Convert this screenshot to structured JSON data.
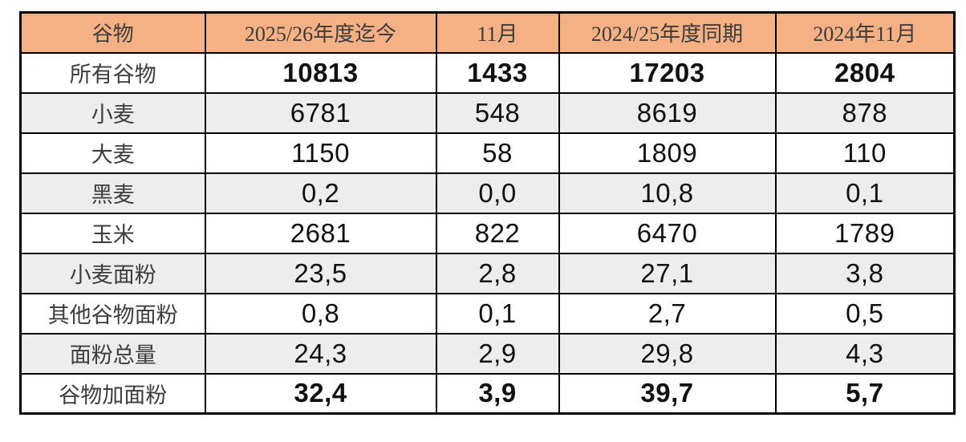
{
  "colors": {
    "header_bg": "#F5B183",
    "alt_row_bg": "#EDEDED",
    "border": "#000000",
    "header_text": "#3C3C3C",
    "label_text": "#3C3C3C",
    "number_text": "#111111",
    "page_bg": "#FFFFFF"
  },
  "chart_data": {
    "type": "table",
    "title": "",
    "columns": [
      "谷物",
      "2025/26年度迄今",
      "11月",
      "2024/25年度同期",
      "2024年11月"
    ],
    "rows": [
      {
        "label": "所有谷物",
        "values": [
          "10813",
          "1433",
          "17203",
          "2804"
        ],
        "bold": true
      },
      {
        "label": "小麦",
        "values": [
          "6781",
          "548",
          "8619",
          "878"
        ],
        "bold": false
      },
      {
        "label": "大麦",
        "values": [
          "1150",
          "58",
          "1809",
          "110"
        ],
        "bold": false
      },
      {
        "label": "黑麦",
        "values": [
          "0,2",
          "0,0",
          "10,8",
          "0,1"
        ],
        "bold": false
      },
      {
        "label": "玉米",
        "values": [
          "2681",
          "822",
          "6470",
          "1789"
        ],
        "bold": false
      },
      {
        "label": "小麦面粉",
        "values": [
          "23,5",
          "2,8",
          "27,1",
          "3,8"
        ],
        "bold": false
      },
      {
        "label": "其他谷物面粉",
        "values": [
          "0,8",
          "0,1",
          "2,7",
          "0,5"
        ],
        "bold": false
      },
      {
        "label": "面粉总量",
        "values": [
          "24,3",
          "2,9",
          "29,8",
          "4,3"
        ],
        "bold": false
      },
      {
        "label": "谷物加面粉",
        "values": [
          "32,4",
          "3,9",
          "39,7",
          "5,7"
        ],
        "bold": true
      }
    ]
  }
}
